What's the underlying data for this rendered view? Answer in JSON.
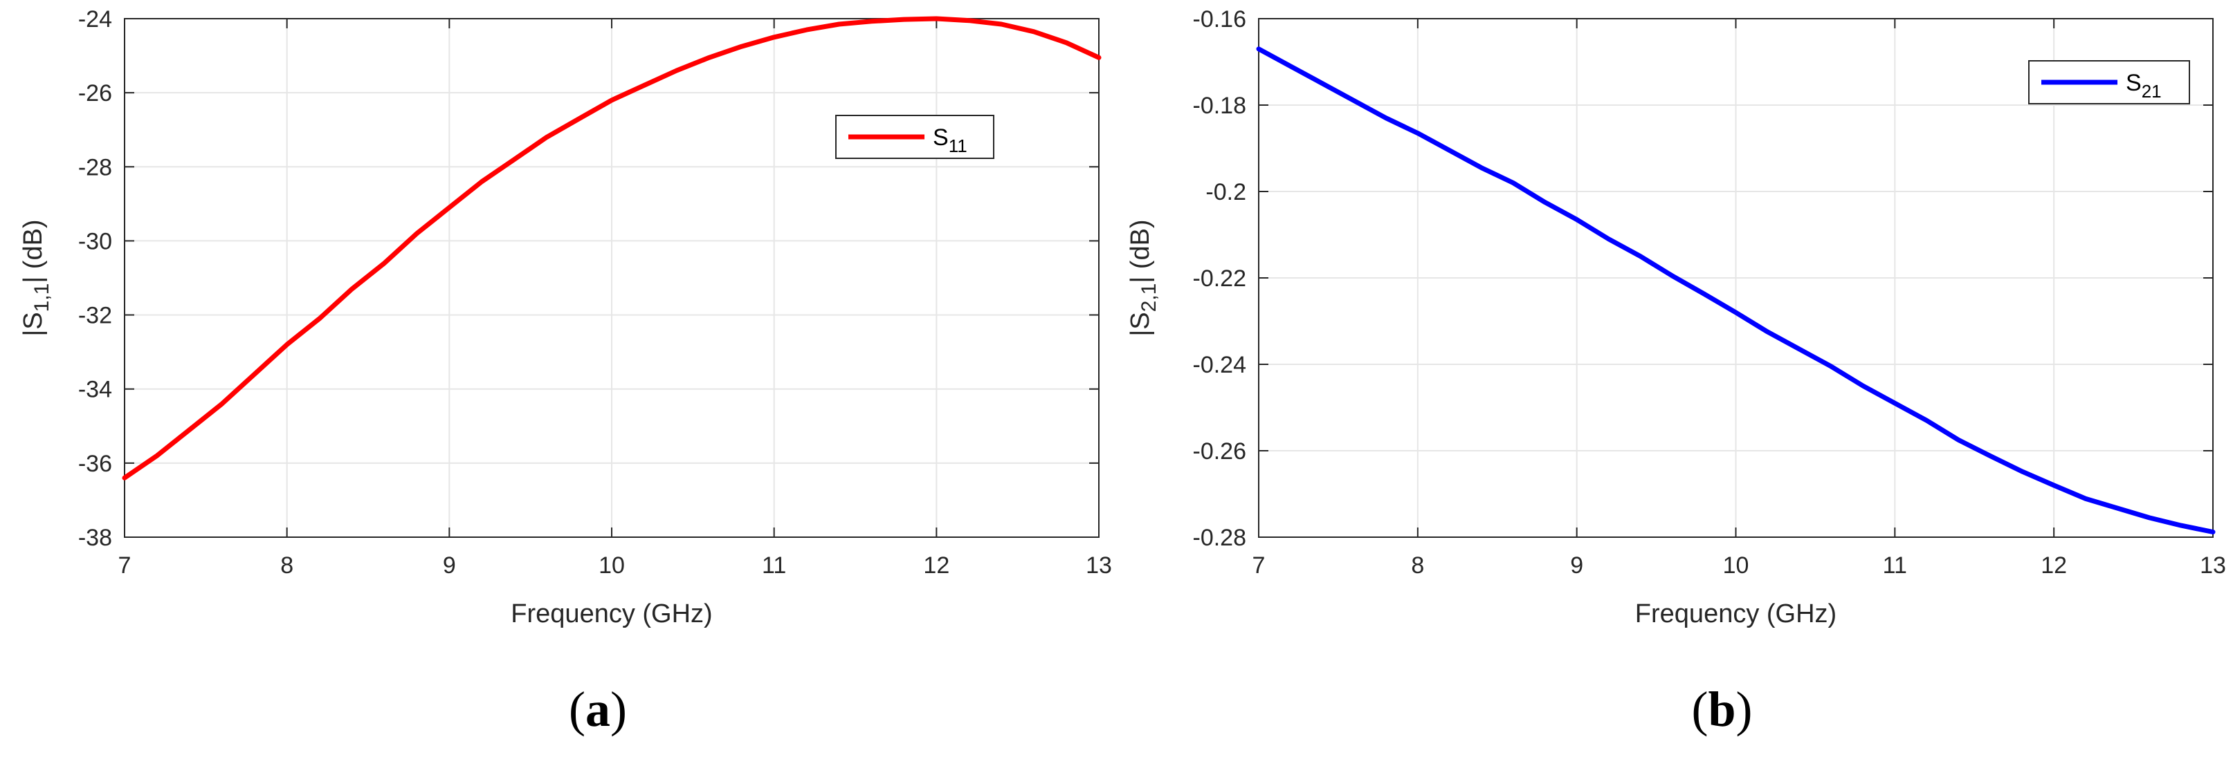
{
  "chart_data": [
    {
      "type": "line",
      "panel_label": {
        "open": "(",
        "letter": "a",
        "close": ")"
      },
      "xlabel": "Frequency (GHz)",
      "ylabel": {
        "base": "|S",
        "sub": "1,1",
        "tail": "| (dB)"
      },
      "xlim": [
        7,
        13
      ],
      "ylim": [
        -38,
        -24
      ],
      "xticks": [
        "7",
        "8",
        "9",
        "10",
        "11",
        "12",
        "13"
      ],
      "yticks": [
        "-38",
        "-36",
        "-34",
        "-32",
        "-30",
        "-28",
        "-26",
        "-24"
      ],
      "grid": true,
      "legend_position": "upper-right",
      "series": [
        {
          "name": "S11",
          "legend": {
            "base": "S",
            "sub": "11"
          },
          "color": "#ff0000",
          "x": [
            7.0,
            7.2,
            7.4,
            7.6,
            7.8,
            8.0,
            8.2,
            8.4,
            8.6,
            8.8,
            9.0,
            9.2,
            9.4,
            9.6,
            9.8,
            10.0,
            10.2,
            10.4,
            10.6,
            10.8,
            11.0,
            11.2,
            11.4,
            11.6,
            11.8,
            12.0,
            12.2,
            12.4,
            12.6,
            12.8,
            13.0
          ],
          "values": [
            -36.4,
            -35.8,
            -35.1,
            -34.4,
            -33.6,
            -32.8,
            -32.1,
            -31.3,
            -30.6,
            -29.8,
            -29.1,
            -28.4,
            -27.8,
            -27.2,
            -26.7,
            -26.2,
            -25.8,
            -25.4,
            -25.05,
            -24.75,
            -24.5,
            -24.3,
            -24.15,
            -24.07,
            -24.02,
            -24.0,
            -24.05,
            -24.15,
            -24.35,
            -24.65,
            -25.05
          ]
        }
      ]
    },
    {
      "type": "line",
      "panel_label": {
        "open": "(",
        "letter": "b",
        "close": ")"
      },
      "xlabel": "Frequency (GHz)",
      "ylabel": {
        "base": "|S",
        "sub": "2,1",
        "tail": "| (dB)"
      },
      "xlim": [
        7,
        13
      ],
      "ylim": [
        -0.28,
        -0.16
      ],
      "xticks": [
        "7",
        "8",
        "9",
        "10",
        "11",
        "12",
        "13"
      ],
      "yticks": [
        "-0.28",
        "-0.26",
        "-0.24",
        "-0.22",
        "-0.2",
        "-0.18",
        "-0.16"
      ],
      "grid": true,
      "legend_position": "upper-right",
      "series": [
        {
          "name": "S21",
          "legend": {
            "base": "S",
            "sub": "21"
          },
          "color": "#0000ff",
          "x": [
            7.0,
            7.2,
            7.4,
            7.6,
            7.8,
            8.0,
            8.2,
            8.4,
            8.6,
            8.8,
            9.0,
            9.2,
            9.4,
            9.6,
            9.8,
            10.0,
            10.2,
            10.4,
            10.6,
            10.8,
            11.0,
            11.2,
            11.4,
            11.6,
            11.8,
            12.0,
            12.2,
            12.4,
            12.6,
            12.8,
            13.0
          ],
          "values": [
            -0.167,
            -0.171,
            -0.175,
            -0.179,
            -0.183,
            -0.1865,
            -0.1905,
            -0.1945,
            -0.198,
            -0.2025,
            -0.2065,
            -0.211,
            -0.215,
            -0.2195,
            -0.2237,
            -0.228,
            -0.2325,
            -0.2365,
            -0.2405,
            -0.245,
            -0.249,
            -0.253,
            -0.2575,
            -0.2612,
            -0.2648,
            -0.268,
            -0.2711,
            -0.2733,
            -0.2755,
            -0.2773,
            -0.2788
          ]
        }
      ]
    }
  ]
}
